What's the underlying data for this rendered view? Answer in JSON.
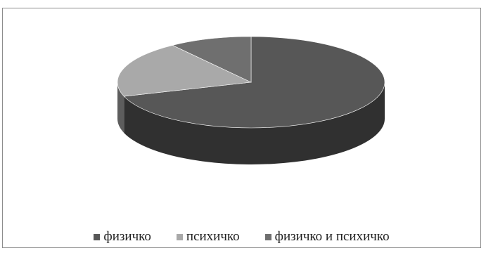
{
  "chart_data": {
    "type": "pie",
    "style": "3d",
    "title": "",
    "legend_position": "bottom",
    "slices": [
      {
        "label": "физичко",
        "value": 70,
        "color": "#575757"
      },
      {
        "label": "психичко",
        "value": 20,
        "color": "#a9a9a9"
      },
      {
        "label": "физичко и психичко",
        "value": 10,
        "color": "#6f6f6f"
      }
    ]
  }
}
